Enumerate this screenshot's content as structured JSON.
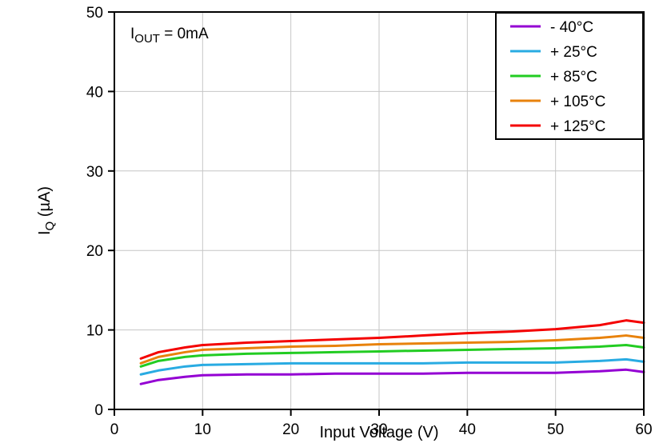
{
  "chart_data": {
    "type": "line",
    "title": "",
    "annotation": {
      "pre": "I",
      "sub": "OUT",
      "post": " = 0mA"
    },
    "xlabel": "Input Voltage (V)",
    "ylabel": {
      "pre": "I",
      "sub": "Q",
      "post": " (µA)"
    },
    "xlim": [
      0,
      60
    ],
    "ylim": [
      0,
      50
    ],
    "xticks": [
      0,
      10,
      20,
      30,
      40,
      50,
      60
    ],
    "yticks": [
      0,
      10,
      20,
      30,
      40,
      50
    ],
    "grid": true,
    "grid_color": "#c6c6c6",
    "axis_color": "#000000",
    "legend_position": "top-right",
    "x": [
      3,
      5,
      8,
      10,
      15,
      20,
      25,
      30,
      35,
      40,
      45,
      50,
      55,
      58,
      60
    ],
    "series": [
      {
        "name": "- 40°C",
        "color": "#9400d3",
        "values": [
          3.2,
          3.7,
          4.1,
          4.3,
          4.4,
          4.4,
          4.5,
          4.5,
          4.5,
          4.6,
          4.6,
          4.6,
          4.8,
          5.0,
          4.7
        ]
      },
      {
        "name": "+ 25°C",
        "color": "#29abe2",
        "values": [
          4.4,
          4.9,
          5.4,
          5.6,
          5.7,
          5.8,
          5.8,
          5.8,
          5.8,
          5.9,
          5.9,
          5.9,
          6.1,
          6.3,
          6.0
        ]
      },
      {
        "name": "+ 85°C",
        "color": "#22cc22",
        "values": [
          5.4,
          6.1,
          6.6,
          6.8,
          7.0,
          7.1,
          7.2,
          7.3,
          7.4,
          7.5,
          7.6,
          7.7,
          7.9,
          8.1,
          7.8
        ]
      },
      {
        "name": "+ 105°C",
        "color": "#e8820c",
        "values": [
          5.8,
          6.6,
          7.2,
          7.5,
          7.7,
          7.9,
          8.0,
          8.2,
          8.3,
          8.4,
          8.5,
          8.7,
          9.0,
          9.3,
          9.0
        ]
      },
      {
        "name": "+ 125°C",
        "color": "#f40000",
        "values": [
          6.4,
          7.2,
          7.8,
          8.1,
          8.4,
          8.6,
          8.8,
          9.0,
          9.3,
          9.6,
          9.8,
          10.1,
          10.6,
          11.2,
          10.9
        ]
      }
    ]
  }
}
